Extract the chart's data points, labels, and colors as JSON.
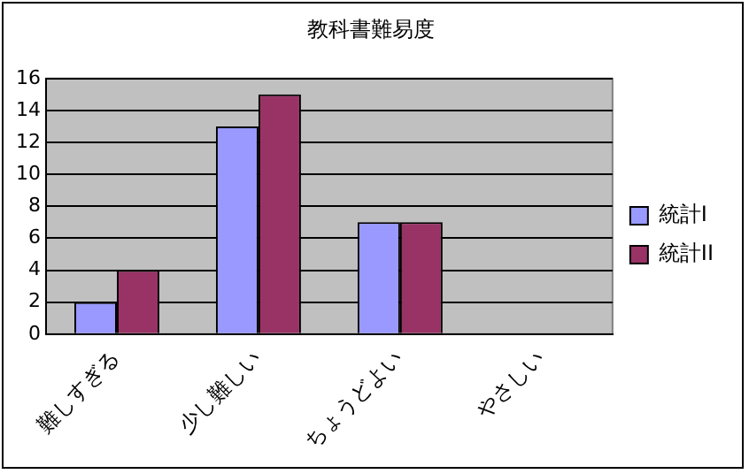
{
  "chart_data": {
    "type": "bar",
    "title": "教科書難易度",
    "categories": [
      "難しすぎる",
      "少し難しい",
      "ちょうどよい",
      "やさしい"
    ],
    "series": [
      {
        "name": "統計I",
        "color": "#9999ff",
        "values": [
          2,
          13,
          7,
          0
        ]
      },
      {
        "name": "統計II",
        "color": "#993366",
        "values": [
          4,
          15,
          7,
          0
        ]
      }
    ],
    "ylim": [
      0,
      16
    ],
    "yticks": [
      0,
      2,
      4,
      6,
      8,
      10,
      12,
      14,
      16
    ],
    "grid": "y",
    "legend": "right"
  }
}
